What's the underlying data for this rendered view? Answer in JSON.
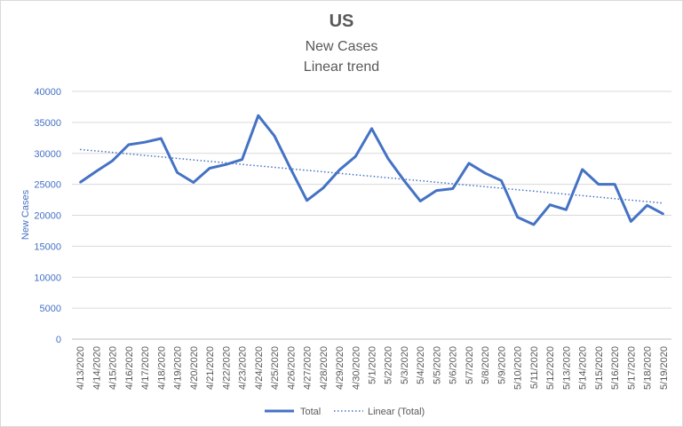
{
  "chart_data": {
    "type": "line",
    "title": "US",
    "subtitle_lines": [
      "New Cases",
      "Linear trend"
    ],
    "ylabel": "New Cases",
    "xlabel": "",
    "ylim": [
      0,
      40000
    ],
    "yticks": [
      0,
      5000,
      10000,
      15000,
      20000,
      25000,
      30000,
      35000,
      40000
    ],
    "grid": true,
    "legend_position": "bottom",
    "categories": [
      "4/13/2020",
      "4/14/2020",
      "4/15/2020",
      "4/16/2020",
      "4/17/2020",
      "4/18/2020",
      "4/19/2020",
      "4/20/2020",
      "4/21/2020",
      "4/22/2020",
      "4/23/2020",
      "4/24/2020",
      "4/25/2020",
      "4/26/2020",
      "4/27/2020",
      "4/28/2020",
      "4/29/2020",
      "4/30/2020",
      "5/1/2020",
      "5/2/2020",
      "5/3/2020",
      "5/4/2020",
      "5/5/2020",
      "5/6/2020",
      "5/7/2020",
      "5/8/2020",
      "5/9/2020",
      "5/10/2020",
      "5/11/2020",
      "5/12/2020",
      "5/13/2020",
      "5/14/2020",
      "5/15/2020",
      "5/16/2020",
      "5/17/2020",
      "5/18/2020",
      "5/19/2020"
    ],
    "series": [
      {
        "name": "Total",
        "color": "#4472c4",
        "style": "solid",
        "values": [
          25300,
          27100,
          28800,
          31400,
          31800,
          32400,
          26900,
          25300,
          27600,
          28200,
          29000,
          36100,
          32800,
          27500,
          22400,
          24400,
          27300,
          29500,
          34000,
          29200,
          25600,
          22300,
          24000,
          24300,
          28400,
          26800,
          25600,
          19700,
          18500,
          21700,
          20900,
          27400,
          25000,
          25000,
          19000,
          21600,
          20200
        ]
      },
      {
        "name": "Linear (Total)",
        "color": "#4472c4",
        "style": "dotted",
        "trend_of": "Total"
      }
    ]
  }
}
